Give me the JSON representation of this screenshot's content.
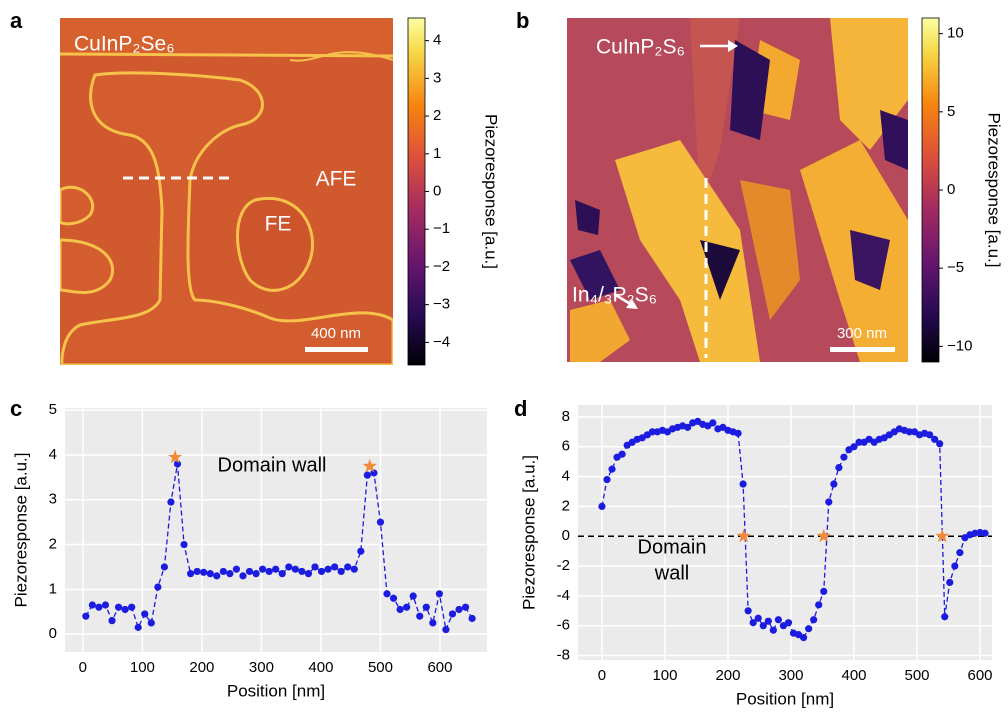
{
  "chart_data": [
    {
      "type": "image",
      "panel_label": "a",
      "annotations": [
        "CuInP₂Se₆",
        "AFE",
        "FE"
      ],
      "scale_bar": "400 nm",
      "colorbar_label": "Piezoresponse [a.u.]",
      "clim": [
        -4.6,
        4.6
      ],
      "cticks": [
        4,
        3,
        2,
        1,
        0,
        {
          "value": -1,
          "label": "−1"
        },
        {
          "value": -2,
          "label": "−2"
        },
        {
          "value": -3,
          "label": "−3"
        },
        {
          "value": -4,
          "label": "−4"
        }
      ]
    },
    {
      "type": "image",
      "panel_label": "b",
      "annotations": [
        "CuInP₂S₆",
        "In₄/₃P₂S₆"
      ],
      "scale_bar": "300 nm",
      "colorbar_label": "Piezoresponse [a.u.]",
      "clim": [
        -11,
        11
      ],
      "cticks": [
        10,
        5,
        0,
        {
          "value": -5,
          "label": "−5"
        },
        {
          "value": -10,
          "label": "−10"
        }
      ]
    },
    {
      "type": "line",
      "panel_label": "c",
      "xlabel": "Position [nm]",
      "ylabel": "Piezoresponse [a.u.]",
      "annotation": "Domain wall",
      "color": "#1c1ce0",
      "marker_color": "#f28a3c",
      "background": "#ebebeb",
      "grid": true,
      "xlim": [
        -30,
        679
      ],
      "ylim": [
        -0.4,
        5.05
      ],
      "xticks": [
        0,
        100,
        200,
        300,
        400,
        500,
        600
      ],
      "yticks": [
        0,
        1,
        2,
        3,
        4,
        5
      ],
      "x": [
        5,
        16,
        27,
        38,
        49,
        60,
        71,
        82,
        93,
        104,
        115,
        126,
        137,
        148,
        159,
        170,
        181,
        192,
        203,
        214,
        225,
        236,
        247,
        258,
        269,
        280,
        291,
        302,
        313,
        324,
        335,
        346,
        357,
        368,
        379,
        390,
        401,
        412,
        423,
        434,
        445,
        456,
        467,
        478,
        489,
        500,
        511,
        522,
        533,
        544,
        555,
        566,
        577,
        588,
        599,
        610,
        621,
        632,
        643,
        654
      ],
      "values": [
        0.4,
        0.65,
        0.6,
        0.65,
        0.3,
        0.6,
        0.55,
        0.6,
        0.15,
        0.45,
        0.25,
        1.05,
        1.5,
        2.95,
        3.8,
        2.0,
        1.35,
        1.4,
        1.38,
        1.35,
        1.3,
        1.4,
        1.35,
        1.45,
        1.3,
        1.4,
        1.35,
        1.45,
        1.4,
        1.45,
        1.35,
        1.5,
        1.45,
        1.4,
        1.35,
        1.5,
        1.4,
        1.45,
        1.5,
        1.4,
        1.5,
        1.45,
        1.85,
        3.55,
        3.6,
        2.5,
        0.9,
        0.8,
        0.55,
        0.6,
        0.85,
        0.4,
        0.6,
        0.25,
        0.9,
        0.1,
        0.45,
        0.55,
        0.6,
        0.35
      ],
      "marker_x": [
        155,
        482
      ],
      "marker_y": [
        3.95,
        3.75
      ]
    },
    {
      "type": "line",
      "panel_label": "d",
      "xlabel": "Position [nm]",
      "ylabel": "Piezoresponse [a.u.]",
      "annotation_lines": [
        "Domain",
        "wall"
      ],
      "color": "#1c1ce0",
      "marker_color": "#f28a3c",
      "background": "#ebebeb",
      "grid": true,
      "hline": 0,
      "xlim": [
        -38,
        619
      ],
      "ylim": [
        -8.3,
        8.8
      ],
      "xticks": [
        0,
        100,
        200,
        300,
        400,
        500,
        600
      ],
      "yticks": [
        -8,
        -6,
        -4,
        -2,
        0,
        2,
        4,
        6,
        8
      ],
      "x": [
        0,
        8,
        16,
        24,
        32,
        40,
        48,
        56,
        64,
        72,
        80,
        88,
        96,
        104,
        112,
        120,
        128,
        136,
        144,
        152,
        160,
        168,
        176,
        184,
        192,
        200,
        208,
        216,
        224,
        232,
        240,
        248,
        256,
        264,
        272,
        280,
        288,
        296,
        304,
        312,
        320,
        328,
        336,
        344,
        352,
        360,
        368,
        376,
        384,
        392,
        400,
        408,
        416,
        424,
        432,
        440,
        448,
        456,
        464,
        472,
        480,
        488,
        496,
        504,
        512,
        520,
        528,
        536,
        544,
        552,
        560,
        568,
        576,
        584,
        592,
        600,
        608
      ],
      "values": [
        2.0,
        3.8,
        4.5,
        5.3,
        5.5,
        6.1,
        6.3,
        6.5,
        6.6,
        6.8,
        7.0,
        7.0,
        7.1,
        7.0,
        7.2,
        7.3,
        7.4,
        7.3,
        7.6,
        7.7,
        7.5,
        7.4,
        7.6,
        7.2,
        7.3,
        7.1,
        7.0,
        6.9,
        3.5,
        -5.0,
        -5.8,
        -5.5,
        -6.0,
        -5.7,
        -6.3,
        -5.6,
        -6.0,
        -5.8,
        -6.5,
        -6.6,
        -6.8,
        -6.2,
        -5.6,
        -4.6,
        -3.7,
        2.3,
        3.5,
        4.6,
        5.3,
        5.8,
        6.0,
        6.3,
        6.3,
        6.5,
        6.3,
        6.5,
        6.6,
        6.8,
        7.0,
        7.2,
        7.1,
        7.0,
        7.0,
        6.8,
        6.9,
        6.8,
        6.5,
        6.2,
        -5.4,
        -3.1,
        -2.0,
        -1.1,
        -0.1,
        0.1,
        0.2,
        0.25,
        0.2
      ],
      "marker_x": [
        225,
        352,
        540
      ],
      "marker_y": [
        0,
        0,
        0
      ]
    }
  ]
}
